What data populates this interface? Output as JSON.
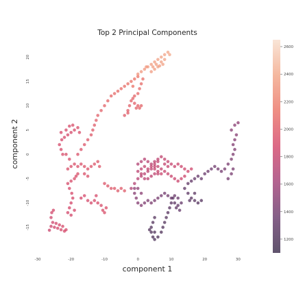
{
  "chart_data": {
    "type": "scatter",
    "title": "Top 2 Principal Components",
    "xlabel": "component 1",
    "ylabel": "component 2",
    "xlim": [
      -30,
      33
    ],
    "ylim": [
      -19,
      23
    ],
    "xticks": [
      -30,
      -20,
      -10,
      0,
      10,
      20,
      30
    ],
    "yticks": [
      -15,
      -10,
      -5,
      0,
      5,
      10,
      15,
      20
    ],
    "grid": false,
    "marker_alpha": 0.7,
    "colorbar": {
      "range": [
        1100,
        2650
      ],
      "ticks": [
        1200,
        1400,
        1600,
        1800,
        2000,
        2200,
        2400,
        2600
      ],
      "colormap": [
        "#2b1b3d",
        "#5c2a60",
        "#9a2f6b",
        "#d0375e",
        "#e9685a",
        "#f1a07f",
        "#f7dcc9"
      ]
    },
    "points": [
      [
        -26.5,
        -15.6,
        1820
      ],
      [
        -26,
        -14.8,
        1830
      ],
      [
        -25.5,
        -14,
        1840
      ],
      [
        -25,
        -15,
        1850
      ],
      [
        -24.5,
        -14.2,
        1860
      ],
      [
        -24,
        -15.2,
        1870
      ],
      [
        -23.5,
        -14.5,
        1880
      ],
      [
        -23,
        -15.5,
        1890
      ],
      [
        -22.5,
        -14.8,
        1900
      ],
      [
        -26,
        -13,
        1850
      ],
      [
        -25.8,
        -12,
        1860
      ],
      [
        -25.3,
        -11.5,
        1870
      ],
      [
        -22,
        -15.8,
        1890
      ],
      [
        -21.5,
        -15.5,
        1895
      ],
      [
        -21,
        -12,
        1870
      ],
      [
        -20.5,
        -11,
        1875
      ],
      [
        -20,
        -10,
        1880
      ],
      [
        -19.5,
        -9,
        1885
      ],
      [
        -19.8,
        -8,
        1890
      ],
      [
        -20.5,
        -7,
        1895
      ],
      [
        -21,
        -6,
        1900
      ],
      [
        -20,
        -5.5,
        1905
      ],
      [
        -19,
        -5,
        1910
      ],
      [
        -18.5,
        -4.5,
        1915
      ],
      [
        -18,
        -4,
        1920
      ],
      [
        -20,
        -12.5,
        1870
      ],
      [
        -19,
        -11.5,
        1875
      ],
      [
        -21,
        -3,
        1920
      ],
      [
        -20,
        -2.5,
        1925
      ],
      [
        -19,
        -2,
        1930
      ],
      [
        -18,
        -2.5,
        1935
      ],
      [
        -17,
        -2,
        1940
      ],
      [
        -16,
        -2.5,
        1945
      ],
      [
        -15,
        -3,
        1950
      ],
      [
        -14,
        -2.5,
        1955
      ],
      [
        -13,
        -2,
        1960
      ],
      [
        -12,
        -1.5,
        1965
      ],
      [
        -11.5,
        -2.5,
        1970
      ],
      [
        -21.5,
        0,
        1910
      ],
      [
        -20.5,
        -1,
        1915
      ],
      [
        -22.5,
        0,
        1905
      ],
      [
        -23,
        1,
        1900
      ],
      [
        -23.5,
        2,
        1895
      ],
      [
        -22.8,
        3,
        1890
      ],
      [
        -22,
        3.5,
        1890
      ],
      [
        -21,
        4,
        1895
      ],
      [
        -20,
        4.5,
        1900
      ],
      [
        -19,
        5,
        1905
      ],
      [
        -18,
        5.5,
        1910
      ],
      [
        -21.5,
        5,
        1900
      ],
      [
        -20.5,
        5.8,
        1905
      ],
      [
        -23,
        4.5,
        1895
      ],
      [
        -19.5,
        6,
        1910
      ],
      [
        -17.5,
        4.5,
        1915
      ],
      [
        -16,
        -4,
        1935
      ],
      [
        -15,
        -4.5,
        1940
      ],
      [
        -18,
        0,
        1940
      ],
      [
        -17,
        1,
        1950
      ],
      [
        -16,
        2,
        1960
      ],
      [
        -15,
        3,
        1970
      ],
      [
        -14,
        4,
        1980
      ],
      [
        -13.5,
        5,
        1990
      ],
      [
        -13,
        6,
        2000
      ],
      [
        -12.5,
        7,
        2010
      ],
      [
        -12,
        8,
        2020
      ],
      [
        -11,
        9,
        2030
      ],
      [
        -10,
        10,
        2040
      ],
      [
        -9,
        11,
        2050
      ],
      [
        -8,
        12,
        2060
      ],
      [
        -7,
        12.5,
        2070
      ],
      [
        -6,
        13,
        2080
      ],
      [
        -5,
        13.5,
        2090
      ],
      [
        -4,
        14,
        2100
      ],
      [
        -3,
        14.5,
        2110
      ],
      [
        -2,
        15,
        2120
      ],
      [
        -1,
        15.5,
        2130
      ],
      [
        0,
        16,
        2140
      ],
      [
        -1.5,
        14,
        2125
      ],
      [
        -17,
        -9,
        1880
      ],
      [
        -16,
        -8.5,
        1885
      ],
      [
        -15,
        -9.5,
        1890
      ],
      [
        -14,
        -10,
        1895
      ],
      [
        -13,
        -9.5,
        1900
      ],
      [
        -12,
        -10,
        1905
      ],
      [
        -11,
        -10.5,
        1910
      ],
      [
        -10.5,
        -11.5,
        1915
      ],
      [
        -10,
        -12,
        1920
      ],
      [
        -9.5,
        -11,
        1925
      ],
      [
        -12.5,
        -8.5,
        1900
      ],
      [
        -10,
        -6,
        1960
      ],
      [
        -9,
        -6.5,
        1965
      ],
      [
        -8,
        -7,
        1970
      ],
      [
        -7,
        -7,
        1975
      ],
      [
        -6,
        -7.5,
        1980
      ],
      [
        -5,
        -7,
        1985
      ],
      [
        -4,
        -7.5,
        1990
      ],
      [
        -4,
        8,
        2000
      ],
      [
        -3,
        9,
        2010
      ],
      [
        -2.5,
        10,
        2020
      ],
      [
        -2,
        11,
        2030
      ],
      [
        -1.5,
        11.5,
        2040
      ],
      [
        -1,
        12,
        2050
      ],
      [
        0,
        12.5,
        2060
      ],
      [
        0.5,
        13.5,
        2070
      ],
      [
        1,
        14.5,
        2080
      ],
      [
        0,
        10,
        2030
      ],
      [
        -0.5,
        9.5,
        2035
      ],
      [
        0.5,
        9.5,
        2040
      ],
      [
        1,
        10,
        2045
      ],
      [
        -1,
        10.5,
        2025
      ],
      [
        1.5,
        15.5,
        2100
      ],
      [
        -3,
        8.5,
        2005
      ],
      [
        0,
        16.5,
        2300
      ],
      [
        1,
        17,
        2310
      ],
      [
        2,
        17.5,
        2320
      ],
      [
        3,
        18,
        2330
      ],
      [
        4,
        18.5,
        2340
      ],
      [
        5,
        19,
        2350
      ],
      [
        6,
        19.5,
        2360
      ],
      [
        7,
        20,
        2370
      ],
      [
        8,
        20.5,
        2380
      ],
      [
        9,
        21,
        2390
      ],
      [
        9.5,
        20.5,
        2395
      ],
      [
        6,
        18,
        2355
      ],
      [
        5,
        17.5,
        2345
      ],
      [
        4,
        17,
        2335
      ],
      [
        5.5,
        18.5,
        2350
      ],
      [
        6.5,
        18.2,
        2360
      ],
      [
        4.5,
        18,
        2340
      ],
      [
        7,
        19,
        2365
      ],
      [
        8,
        19.5,
        2375
      ],
      [
        2.5,
        18,
        2320
      ],
      [
        7.5,
        18.5,
        2368
      ],
      [
        -2,
        -7,
        1700
      ],
      [
        -1,
        -6,
        1710
      ],
      [
        0,
        -5,
        1720
      ],
      [
        1,
        -4.5,
        1730
      ],
      [
        2,
        -4,
        1740
      ],
      [
        3,
        -3.5,
        1750
      ],
      [
        4,
        -3,
        1760
      ],
      [
        5,
        -2.5,
        1770
      ],
      [
        6,
        -2.5,
        1780
      ],
      [
        7,
        -3,
        1790
      ],
      [
        8,
        -3.5,
        1800
      ],
      [
        9,
        -4,
        1810
      ],
      [
        10,
        -4.5,
        1815
      ],
      [
        11,
        -5,
        1820
      ],
      [
        12,
        -5.5,
        1825
      ],
      [
        13,
        -5,
        1830
      ],
      [
        14,
        -4.5,
        1835
      ],
      [
        0,
        -2,
        1700
      ],
      [
        1,
        -1.5,
        1710
      ],
      [
        2,
        -1,
        1720
      ],
      [
        3,
        -1.5,
        1730
      ],
      [
        4,
        -2,
        1740
      ],
      [
        5,
        -1.5,
        1750
      ],
      [
        6,
        -1,
        1760
      ],
      [
        7,
        -0.5,
        1770
      ],
      [
        8,
        -1,
        1780
      ],
      [
        9,
        -1.5,
        1790
      ],
      [
        10,
        -2,
        1800
      ],
      [
        11,
        -2.5,
        1810
      ],
      [
        12,
        -2,
        1820
      ],
      [
        13,
        -2.5,
        1830
      ],
      [
        14,
        -3,
        1840
      ],
      [
        15,
        -3.5,
        1845
      ],
      [
        16,
        -3,
        1850
      ],
      [
        -1,
        -8,
        1500
      ],
      [
        -0.5,
        -9,
        1490
      ],
      [
        0,
        -10,
        1480
      ],
      [
        1,
        -10.5,
        1470
      ],
      [
        2,
        -10,
        1460
      ],
      [
        3,
        -9.5,
        1450
      ],
      [
        4,
        -10,
        1440
      ],
      [
        5,
        -9.5,
        1430
      ],
      [
        6,
        -9,
        1420
      ],
      [
        7,
        -8.5,
        1410
      ],
      [
        8,
        -8,
        1400
      ],
      [
        9,
        -8.5,
        1390
      ],
      [
        10,
        -9,
        1380
      ],
      [
        11,
        -8.5,
        1370
      ],
      [
        12,
        -9,
        1360
      ],
      [
        -1,
        -7,
        1520
      ],
      [
        0,
        -7,
        1530
      ],
      [
        1,
        -8,
        1510
      ],
      [
        5,
        -13,
        1250
      ],
      [
        4.5,
        -14,
        1240
      ],
      [
        4,
        -15,
        1230
      ],
      [
        4,
        -16,
        1220
      ],
      [
        4.5,
        -17,
        1210
      ],
      [
        5,
        -17.5,
        1200
      ],
      [
        6,
        -17,
        1210
      ],
      [
        7,
        -16,
        1220
      ],
      [
        7.5,
        -15,
        1230
      ],
      [
        8,
        -14,
        1240
      ],
      [
        8.5,
        -13,
        1250
      ],
      [
        9,
        -12,
        1260
      ],
      [
        9.5,
        -11,
        1270
      ],
      [
        10,
        -10,
        1280
      ],
      [
        10.5,
        -9,
        1290
      ],
      [
        11,
        -10,
        1300
      ],
      [
        11.5,
        -11,
        1310
      ],
      [
        12,
        -10.5,
        1320
      ],
      [
        12.5,
        -11.5,
        1330
      ],
      [
        13,
        -10,
        1340
      ],
      [
        5,
        -16,
        1215
      ],
      [
        3.5,
        -15.5,
        1225
      ],
      [
        14,
        -7,
        1300
      ],
      [
        15,
        -6,
        1310
      ],
      [
        16,
        -5.5,
        1320
      ],
      [
        17,
        -5,
        1330
      ],
      [
        18,
        -4.5,
        1340
      ],
      [
        19,
        -5,
        1350
      ],
      [
        20,
        -4,
        1360
      ],
      [
        21,
        -3.5,
        1370
      ],
      [
        22,
        -3,
        1380
      ],
      [
        23,
        -2.5,
        1390
      ],
      [
        24,
        -3,
        1400
      ],
      [
        25,
        -3.5,
        1410
      ],
      [
        26,
        -3,
        1420
      ],
      [
        27,
        -2,
        1430
      ],
      [
        28,
        -1,
        1440
      ],
      [
        28.5,
        0,
        1450
      ],
      [
        29,
        1,
        1460
      ],
      [
        28.5,
        2,
        1470
      ],
      [
        29,
        3,
        1480
      ],
      [
        29.5,
        4,
        1490
      ],
      [
        28,
        5,
        1500
      ],
      [
        29,
        6,
        1510
      ],
      [
        30,
        6.5,
        1520
      ],
      [
        28,
        -4,
        1420
      ],
      [
        27,
        -5,
        1410
      ],
      [
        28.5,
        -3,
        1425
      ],
      [
        15,
        -8,
        1290
      ],
      [
        16,
        -9,
        1280
      ],
      [
        17,
        -9.5,
        1270
      ],
      [
        18,
        -10,
        1260
      ],
      [
        19,
        -9.5,
        1250
      ],
      [
        17,
        -8,
        1285
      ],
      [
        15.5,
        -9.5,
        1275
      ],
      [
        1,
        -3,
        1760
      ],
      [
        2,
        -2.5,
        1770
      ],
      [
        3,
        -3,
        1780
      ],
      [
        4,
        -2.5,
        1790
      ],
      [
        5,
        -3,
        1800
      ],
      [
        6,
        -3.5,
        1810
      ],
      [
        7,
        -4,
        1820
      ],
      [
        1,
        -4,
        1750
      ],
      [
        2,
        -5,
        1740
      ],
      [
        3,
        -5,
        1745
      ],
      [
        4,
        -4.5,
        1755
      ],
      [
        5,
        -4,
        1765
      ],
      [
        6,
        -4,
        1775
      ],
      [
        0,
        -3.5,
        1745
      ],
      [
        8,
        -2,
        1790
      ],
      [
        9,
        -2.5,
        1800
      ],
      [
        6,
        -1.5,
        1780
      ],
      [
        5,
        -2,
        1775
      ]
    ]
  }
}
